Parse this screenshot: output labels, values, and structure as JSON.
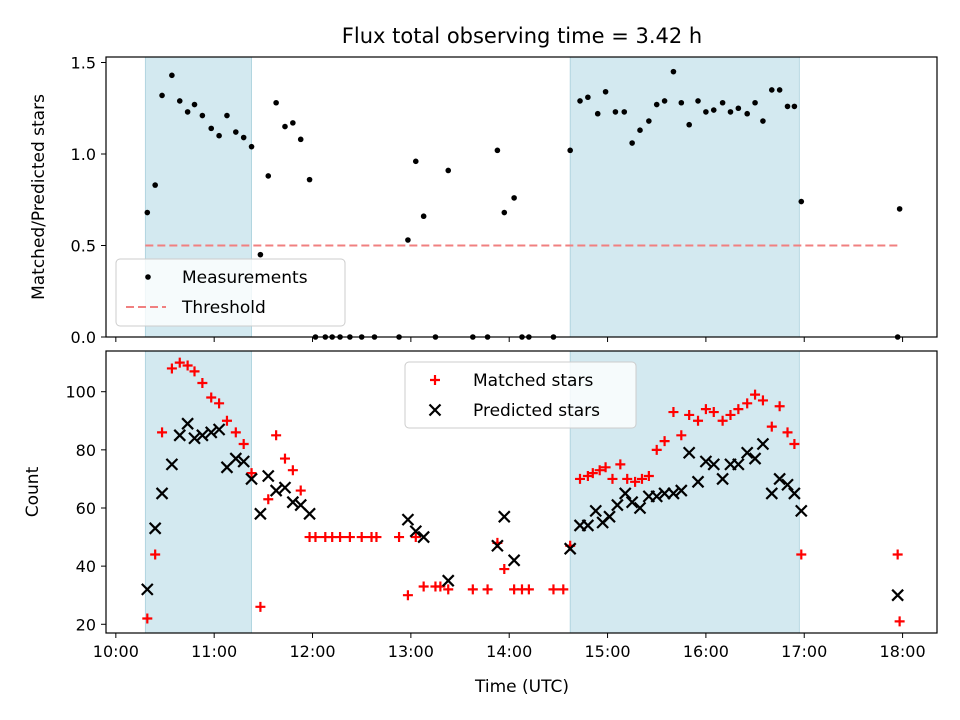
{
  "figure": {
    "title": "Flux total observing time = 3.42 h",
    "xlabel": "Time (UTC)"
  },
  "colors": {
    "shade": "#d3e9f0",
    "measurement": "#000000",
    "threshold": "#f08080",
    "matched": "#ff0000",
    "predicted": "#000000"
  },
  "chart_data": [
    {
      "type": "scatter",
      "title": "Flux total observing time = 3.42 h",
      "ylabel": "Matched/Predicted stars",
      "xlabel": "",
      "x_unit": "hours UTC",
      "xlim": [
        9.9,
        18.35
      ],
      "ylim": [
        0,
        1.53
      ],
      "x_ticks": [
        "10:00",
        "11:00",
        "12:00",
        "13:00",
        "14:00",
        "15:00",
        "16:00",
        "17:00",
        "18:00"
      ],
      "y_ticks": [
        "0.0",
        "0.5",
        "1.0",
        "1.5"
      ],
      "shaded_intervals": [
        [
          10.3,
          11.38
        ],
        [
          14.62,
          16.95
        ]
      ],
      "legend_position": "lower-left",
      "threshold": {
        "name": "Threshold",
        "value": 0.5,
        "x_range": [
          10.3,
          17.95
        ]
      },
      "series": [
        {
          "name": "Measurements",
          "marker": "dot",
          "points": [
            [
              10.32,
              0.68
            ],
            [
              10.4,
              0.83
            ],
            [
              10.47,
              1.32
            ],
            [
              10.57,
              1.43
            ],
            [
              10.65,
              1.29
            ],
            [
              10.73,
              1.23
            ],
            [
              10.8,
              1.27
            ],
            [
              10.88,
              1.21
            ],
            [
              10.97,
              1.14
            ],
            [
              11.05,
              1.1
            ],
            [
              11.13,
              1.21
            ],
            [
              11.22,
              1.12
            ],
            [
              11.3,
              1.09
            ],
            [
              11.38,
              1.04
            ],
            [
              11.47,
              0.45
            ],
            [
              11.55,
              0.88
            ],
            [
              11.63,
              1.28
            ],
            [
              11.72,
              1.15
            ],
            [
              11.8,
              1.17
            ],
            [
              11.88,
              1.08
            ],
            [
              11.97,
              0.86
            ],
            [
              12.03,
              0
            ],
            [
              12.13,
              0
            ],
            [
              12.2,
              0
            ],
            [
              12.28,
              0
            ],
            [
              12.38,
              0
            ],
            [
              12.5,
              0
            ],
            [
              12.63,
              0
            ],
            [
              12.88,
              0
            ],
            [
              12.97,
              0.53
            ],
            [
              13.05,
              0.96
            ],
            [
              13.13,
              0.66
            ],
            [
              13.25,
              0
            ],
            [
              13.38,
              0.91
            ],
            [
              13.63,
              0
            ],
            [
              13.78,
              0
            ],
            [
              13.88,
              1.02
            ],
            [
              13.95,
              0.68
            ],
            [
              14.05,
              0.76
            ],
            [
              14.13,
              0
            ],
            [
              14.2,
              0
            ],
            [
              14.45,
              0
            ],
            [
              14.62,
              1.02
            ],
            [
              14.72,
              1.29
            ],
            [
              14.8,
              1.31
            ],
            [
              14.9,
              1.22
            ],
            [
              14.98,
              1.34
            ],
            [
              15.08,
              1.23
            ],
            [
              15.17,
              1.23
            ],
            [
              15.25,
              1.06
            ],
            [
              15.33,
              1.13
            ],
            [
              15.42,
              1.18
            ],
            [
              15.5,
              1.27
            ],
            [
              15.58,
              1.29
            ],
            [
              15.67,
              1.45
            ],
            [
              15.75,
              1.28
            ],
            [
              15.83,
              1.16
            ],
            [
              15.92,
              1.29
            ],
            [
              16.0,
              1.23
            ],
            [
              16.08,
              1.24
            ],
            [
              16.17,
              1.28
            ],
            [
              16.25,
              1.23
            ],
            [
              16.33,
              1.25
            ],
            [
              16.42,
              1.22
            ],
            [
              16.5,
              1.28
            ],
            [
              16.58,
              1.18
            ],
            [
              16.67,
              1.35
            ],
            [
              16.75,
              1.35
            ],
            [
              16.83,
              1.26
            ],
            [
              16.9,
              1.26
            ],
            [
              16.97,
              0.74
            ],
            [
              17.95,
              0
            ],
            [
              17.97,
              0.7
            ]
          ]
        }
      ]
    },
    {
      "type": "scatter",
      "ylabel": "Count",
      "xlabel": "Time (UTC)",
      "x_unit": "hours UTC",
      "xlim": [
        9.9,
        18.35
      ],
      "ylim": [
        17,
        114
      ],
      "x_ticks": [
        "10:00",
        "11:00",
        "12:00",
        "13:00",
        "14:00",
        "15:00",
        "16:00",
        "17:00",
        "18:00"
      ],
      "y_ticks": [
        "20",
        "40",
        "60",
        "80",
        "100"
      ],
      "shaded_intervals": [
        [
          10.3,
          11.38
        ],
        [
          14.62,
          16.95
        ]
      ],
      "legend_position": "upper-center",
      "series": [
        {
          "name": "Matched stars",
          "marker": "plus",
          "points": [
            [
              10.32,
              22
            ],
            [
              10.4,
              44
            ],
            [
              10.47,
              86
            ],
            [
              10.57,
              108
            ],
            [
              10.65,
              110
            ],
            [
              10.73,
              109
            ],
            [
              10.8,
              107
            ],
            [
              10.88,
              103
            ],
            [
              10.97,
              98
            ],
            [
              11.05,
              96
            ],
            [
              11.13,
              90
            ],
            [
              11.22,
              86
            ],
            [
              11.3,
              82
            ],
            [
              11.38,
              72
            ],
            [
              11.47,
              26
            ],
            [
              11.55,
              63
            ],
            [
              11.63,
              85
            ],
            [
              11.72,
              77
            ],
            [
              11.8,
              73
            ],
            [
              11.88,
              66
            ],
            [
              11.97,
              50
            ],
            [
              12.03,
              50
            ],
            [
              12.13,
              50
            ],
            [
              12.2,
              50
            ],
            [
              12.28,
              50
            ],
            [
              12.38,
              50
            ],
            [
              12.5,
              50
            ],
            [
              12.6,
              50
            ],
            [
              12.65,
              50
            ],
            [
              12.88,
              50
            ],
            [
              12.97,
              30
            ],
            [
              13.05,
              50
            ],
            [
              13.13,
              33
            ],
            [
              13.25,
              33
            ],
            [
              13.3,
              33
            ],
            [
              13.38,
              32
            ],
            [
              13.63,
              32
            ],
            [
              13.78,
              32
            ],
            [
              13.88,
              48
            ],
            [
              13.95,
              39
            ],
            [
              14.05,
              32
            ],
            [
              14.13,
              32
            ],
            [
              14.2,
              32
            ],
            [
              14.45,
              32
            ],
            [
              14.55,
              32
            ],
            [
              14.62,
              47
            ],
            [
              14.72,
              70
            ],
            [
              14.8,
              71
            ],
            [
              14.85,
              72
            ],
            [
              14.92,
              73
            ],
            [
              14.98,
              74
            ],
            [
              15.05,
              70
            ],
            [
              15.13,
              75
            ],
            [
              15.2,
              70
            ],
            [
              15.28,
              69
            ],
            [
              15.35,
              70
            ],
            [
              15.42,
              71
            ],
            [
              15.5,
              80
            ],
            [
              15.58,
              83
            ],
            [
              15.67,
              93
            ],
            [
              15.75,
              85
            ],
            [
              15.83,
              92
            ],
            [
              15.92,
              90
            ],
            [
              16.0,
              94
            ],
            [
              16.08,
              93
            ],
            [
              16.17,
              90
            ],
            [
              16.25,
              92
            ],
            [
              16.33,
              94
            ],
            [
              16.42,
              96
            ],
            [
              16.5,
              99
            ],
            [
              16.58,
              97
            ],
            [
              16.67,
              88
            ],
            [
              16.75,
              95
            ],
            [
              16.83,
              86
            ],
            [
              16.9,
              82
            ],
            [
              16.97,
              44
            ],
            [
              17.95,
              44
            ],
            [
              17.97,
              21
            ]
          ]
        },
        {
          "name": "Predicted stars",
          "marker": "x",
          "points": [
            [
              10.32,
              32
            ],
            [
              10.4,
              53
            ],
            [
              10.47,
              65
            ],
            [
              10.57,
              75
            ],
            [
              10.65,
              85
            ],
            [
              10.73,
              89
            ],
            [
              10.8,
              84
            ],
            [
              10.88,
              85
            ],
            [
              10.97,
              86
            ],
            [
              11.05,
              87
            ],
            [
              11.13,
              74
            ],
            [
              11.22,
              77
            ],
            [
              11.3,
              76
            ],
            [
              11.38,
              70
            ],
            [
              11.47,
              58
            ],
            [
              11.55,
              71
            ],
            [
              11.63,
              66
            ],
            [
              11.72,
              67
            ],
            [
              11.8,
              62
            ],
            [
              11.88,
              61
            ],
            [
              11.97,
              58
            ],
            [
              12.97,
              56
            ],
            [
              13.05,
              52
            ],
            [
              13.13,
              50
            ],
            [
              13.38,
              35
            ],
            [
              13.88,
              47
            ],
            [
              13.95,
              57
            ],
            [
              14.05,
              42
            ],
            [
              14.62,
              46
            ],
            [
              14.72,
              54
            ],
            [
              14.8,
              54
            ],
            [
              14.88,
              59
            ],
            [
              14.95,
              55
            ],
            [
              15.02,
              57
            ],
            [
              15.1,
              61
            ],
            [
              15.18,
              65
            ],
            [
              15.25,
              62
            ],
            [
              15.33,
              60
            ],
            [
              15.42,
              64
            ],
            [
              15.5,
              64
            ],
            [
              15.58,
              65
            ],
            [
              15.67,
              65
            ],
            [
              15.75,
              66
            ],
            [
              15.83,
              79
            ],
            [
              15.92,
              69
            ],
            [
              16.0,
              76
            ],
            [
              16.08,
              75
            ],
            [
              16.17,
              70
            ],
            [
              16.25,
              75
            ],
            [
              16.33,
              75
            ],
            [
              16.42,
              79
            ],
            [
              16.5,
              77
            ],
            [
              16.58,
              82
            ],
            [
              16.67,
              65
            ],
            [
              16.75,
              70
            ],
            [
              16.83,
              68
            ],
            [
              16.9,
              65
            ],
            [
              16.97,
              59
            ],
            [
              17.95,
              30
            ]
          ]
        }
      ]
    }
  ]
}
